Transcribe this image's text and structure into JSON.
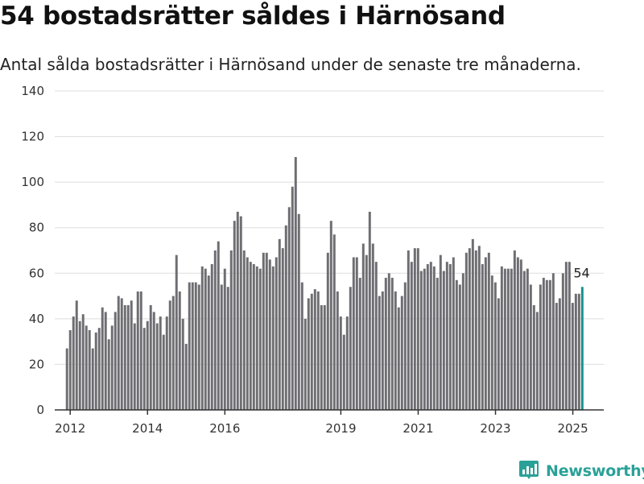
{
  "title": "54 bostadsrätter såldes i Härnösand",
  "subtitle": "Antal sålda bostadsrätter i Härnösand under de senaste tre månaderna.",
  "brand": {
    "name": "Newsworthy",
    "color": "#2aa198",
    "icon": "newsworthy-logo-icon"
  },
  "colors": {
    "bar": "#6e6d72",
    "highlight": "#15928f",
    "grid": "#dddddd",
    "axis": "#333333"
  },
  "chart_data": {
    "type": "bar",
    "title": "54 bostadsrätter såldes i Härnösand",
    "subtitle": "Antal sålda bostadsrätter i Härnösand under de senaste tre månaderna.",
    "xlabel": "",
    "ylabel": "",
    "ylim": [
      0,
      140
    ],
    "yticks": [
      0,
      20,
      40,
      60,
      80,
      100,
      120,
      140
    ],
    "xticks": [
      {
        "label": "2012",
        "x": 2012.0
      },
      {
        "label": "2014",
        "x": 2014.0
      },
      {
        "label": "2016",
        "x": 2016.0
      },
      {
        "label": "2019",
        "x": 2019.0
      },
      {
        "label": "2021",
        "x": 2021.0
      },
      {
        "label": "2023",
        "x": 2023.0
      },
      {
        "label": "2025",
        "x": 2025.0
      }
    ],
    "grid": true,
    "highlight_label": "54",
    "series": [
      {
        "x_start": 2011.917,
        "x_step": 0.0833,
        "values": [
          27,
          35,
          41,
          48,
          39,
          42,
          37,
          35,
          27,
          34,
          36,
          45,
          43,
          31,
          37,
          43,
          50,
          49,
          46,
          46,
          48,
          38,
          52,
          52,
          36,
          39,
          46,
          43,
          38,
          41,
          33,
          41,
          48,
          50,
          68,
          52,
          40,
          29,
          56,
          56,
          56,
          55,
          63,
          62,
          59,
          64,
          70,
          74,
          55,
          62,
          54,
          70,
          83,
          87,
          85,
          70,
          67,
          65,
          64,
          63,
          62,
          69,
          69,
          66,
          63,
          67,
          75,
          71,
          81,
          89,
          98,
          111,
          86,
          56,
          40,
          49,
          51,
          53,
          52,
          46,
          46,
          69,
          83,
          77,
          52,
          41,
          33,
          41,
          54,
          67,
          67,
          58,
          73,
          68,
          87,
          73,
          65,
          50,
          52,
          58,
          60,
          58,
          52,
          45,
          50,
          56,
          70,
          65,
          71,
          71,
          61,
          62,
          64,
          65,
          63,
          58,
          68,
          61,
          65,
          64,
          67,
          57,
          55,
          60,
          69,
          71,
          75,
          70,
          72,
          64,
          67,
          69,
          59,
          56,
          49,
          63,
          62,
          62,
          62,
          70,
          67,
          66,
          61,
          62,
          55,
          46,
          43,
          55,
          58,
          57,
          57,
          60,
          47,
          49,
          60,
          65,
          65,
          47,
          51,
          51,
          54
        ]
      }
    ]
  }
}
